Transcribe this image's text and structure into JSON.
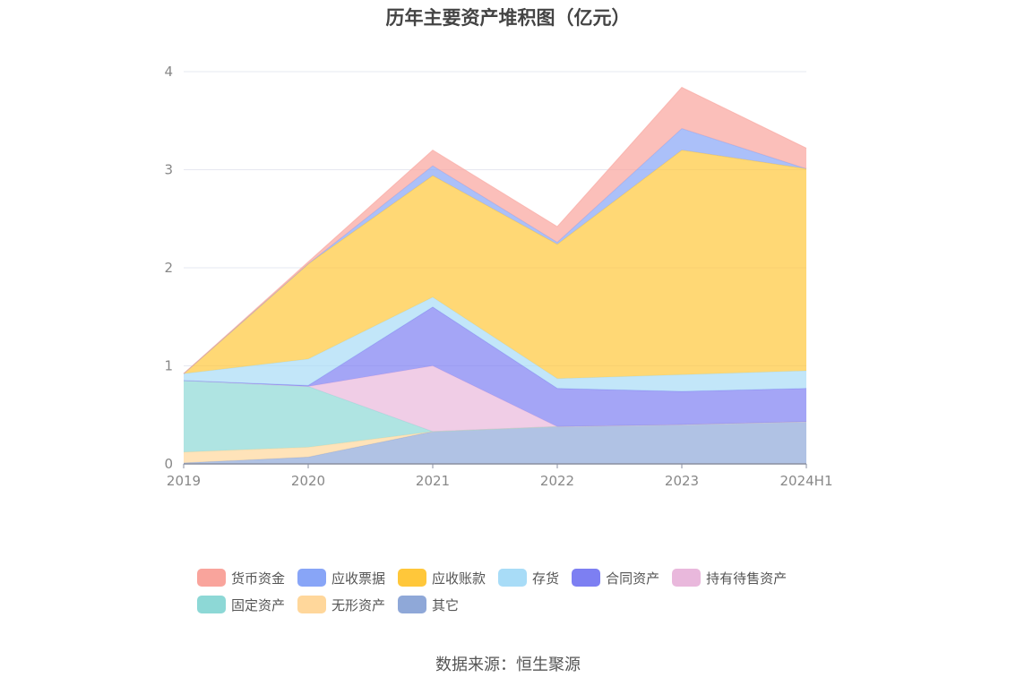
{
  "title": "历年主要资产堆积图（亿元）",
  "source": "数据来源：恒生聚源",
  "chart_data": {
    "type": "area",
    "stacked": true,
    "title": "历年主要资产堆积图（亿元）",
    "categories": [
      "2019",
      "2020",
      "2021",
      "2022",
      "2023",
      "2024H1"
    ],
    "ylim": [
      0,
      4
    ],
    "yticks": [
      0,
      1,
      2,
      3,
      4
    ],
    "grid": true,
    "legend_position": "bottom",
    "series": [
      {
        "name": "其它",
        "color": "#8fa8d8",
        "values": [
          0.01,
          0.07,
          0.33,
          0.38,
          0.4,
          0.43
        ]
      },
      {
        "name": "无形资产",
        "color": "#ffd79b",
        "values": [
          0.11,
          0.1,
          0.0,
          0.0,
          0.0,
          0.0
        ]
      },
      {
        "name": "固定资产",
        "color": "#8dd8d6",
        "values": [
          0.73,
          0.62,
          0.0,
          0.0,
          0.0,
          0.0
        ]
      },
      {
        "name": "持有待售资产",
        "color": "#e9b8dc",
        "values": [
          0.0,
          0.0,
          0.67,
          0.0,
          0.0,
          0.0
        ]
      },
      {
        "name": "合同资产",
        "color": "#7d7ff2",
        "values": [
          0.0,
          0.01,
          0.6,
          0.39,
          0.34,
          0.34
        ]
      },
      {
        "name": "存货",
        "color": "#a8dcf7",
        "values": [
          0.07,
          0.27,
          0.1,
          0.1,
          0.17,
          0.18
        ]
      },
      {
        "name": "应收账款",
        "color": "#ffc73a",
        "values": [
          0.0,
          0.97,
          1.24,
          1.37,
          2.29,
          2.06
        ]
      },
      {
        "name": "应收票据",
        "color": "#88a5f7",
        "values": [
          0.0,
          0.0,
          0.1,
          0.02,
          0.22,
          0.0
        ]
      },
      {
        "name": "货币资金",
        "color": "#f9a49c",
        "values": [
          0.0,
          0.02,
          0.16,
          0.16,
          0.42,
          0.21
        ]
      }
    ],
    "legend_order": [
      "货币资金",
      "应收票据",
      "应收账款",
      "存货",
      "合同资产",
      "持有待售资产",
      "固定资产",
      "无形资产",
      "其它"
    ]
  }
}
